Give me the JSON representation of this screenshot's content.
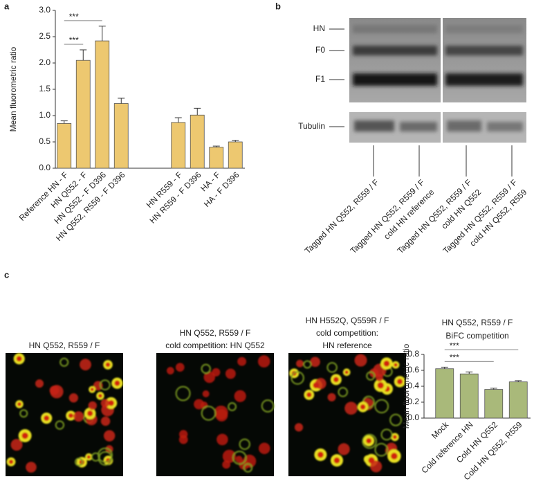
{
  "panel_labels": [
    "a",
    "b",
    "c"
  ],
  "chart_data": [
    {
      "type": "bar",
      "y_label": "Mean fluorometric ratio",
      "categories": [
        "Reference HN - F",
        "HN Q552 - F",
        "HN  Q552 - F D396",
        "HN Q552, R559 - F D396",
        null,
        null,
        "HN R559 - F",
        "HN R559 - F D396",
        "HA - F",
        "HA - F D396"
      ],
      "values": [
        0.85,
        2.05,
        2.42,
        1.23,
        null,
        null,
        0.87,
        1.01,
        0.4,
        0.5
      ],
      "errors": [
        0.05,
        0.2,
        0.28,
        0.1,
        null,
        null,
        0.09,
        0.13,
        0.02,
        0.03
      ],
      "color": "#edc870",
      "ylim": [
        0,
        3
      ],
      "yticks": [
        {
          "value": 0,
          "label": "0.0"
        },
        0.5,
        {
          "value": 1,
          "label": "1.0"
        },
        1.5,
        {
          "value": 2,
          "label": "2.0"
        },
        2.5,
        {
          "value": 3,
          "label": "3.0"
        }
      ],
      "annotations": [
        {
          "label": "***",
          "from_category": 0,
          "to_category": 1
        },
        {
          "label": "***",
          "from_category": 0,
          "to_category": 2
        }
      ]
    },
    {
      "type": "bar",
      "title": "HN Q552, R559 / F",
      "subtitle": "BiFC competition",
      "y_label": "Mean fluorometric ratio",
      "categories": [
        "Mock",
        "Cold reference HN",
        "Cold HN Q552",
        "Cold HN Q552, R559"
      ],
      "values": [
        0.62,
        0.555,
        0.36,
        0.455
      ],
      "errors": [
        0.02,
        0.025,
        0.015,
        0.015
      ],
      "color": "#a9b97a",
      "ylim": [
        0,
        0.8
      ],
      "yticks": [
        {
          "value": 0,
          "label": "0.0"
        },
        0.2,
        0.4,
        0.6,
        0.8
      ],
      "annotations": [
        {
          "label": "***",
          "from_category": 0,
          "to_category": 2
        },
        {
          "label": "***",
          "from_category": 0,
          "to_category": 3
        }
      ]
    }
  ],
  "blot": {
    "bands": [
      "HN",
      "F0",
      "F1",
      "Tubulin"
    ],
    "lanes": [
      [
        "Tagged HN Q552, R559 / F"
      ],
      [
        "Tagged HN Q552, R559 / F",
        "cold HN reference"
      ],
      [
        "Tagged HN Q552, R559 / F",
        "cold HN Q552"
      ],
      [
        "Tagged HN Q552, R559 / F",
        "cold HN Q552, R559"
      ]
    ]
  },
  "micrographs": [
    {
      "caption": [
        "HN Q552, R559 / F"
      ]
    },
    {
      "caption": [
        "HN Q552, R559 / F",
        "cold competition: HN Q552"
      ]
    },
    {
      "caption": [
        "HN H552Q, Q559R / F",
        "cold competition:",
        "HN reference"
      ]
    }
  ]
}
